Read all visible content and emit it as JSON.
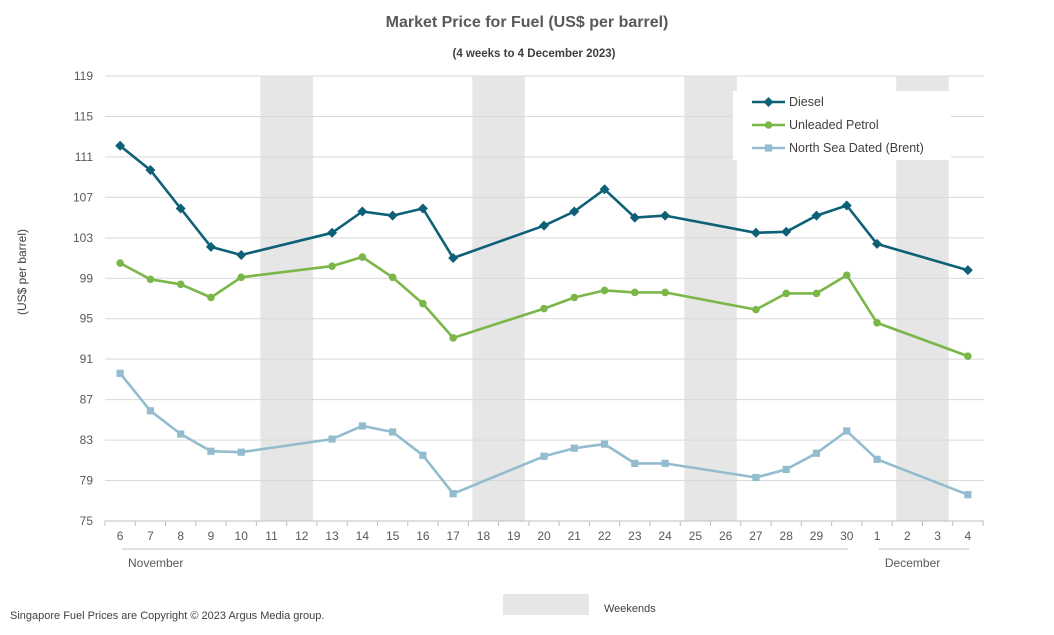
{
  "chart_data": {
    "type": "line",
    "title": "Market Price for Fuel (US$ per barrel)",
    "subtitle": "(4 weeks to 4 December 2023)",
    "xlabel": "",
    "ylabel": "(US$ per barrel)",
    "ylim": [
      75,
      119
    ],
    "yticks": [
      75,
      79,
      83,
      87,
      91,
      95,
      99,
      103,
      107,
      111,
      115,
      119
    ],
    "grid": true,
    "legend_position": "top-right",
    "categories": [
      "6",
      "7",
      "8",
      "9",
      "10",
      "11",
      "12",
      "13",
      "14",
      "15",
      "16",
      "17",
      "18",
      "19",
      "20",
      "21",
      "22",
      "23",
      "24",
      "25",
      "26",
      "27",
      "28",
      "29",
      "30",
      "1",
      "2",
      "3",
      "4"
    ],
    "month_groups": [
      {
        "label": "November",
        "start": 0,
        "end": 24
      },
      {
        "label": "December",
        "start": 25,
        "end": 28
      }
    ],
    "weekend_shading": {
      "label": "Weekends",
      "color": "#e6e6e6",
      "ranges": [
        [
          5,
          6
        ],
        [
          12,
          13
        ],
        [
          19,
          20
        ],
        [
          26,
          27
        ]
      ]
    },
    "series": [
      {
        "name": "Diesel",
        "color": "#0e6077",
        "marker": "diamond",
        "points": [
          [
            0,
            112.1
          ],
          [
            1,
            109.7
          ],
          [
            2,
            105.9
          ],
          [
            3,
            102.1
          ],
          [
            4,
            101.3
          ],
          [
            7,
            103.5
          ],
          [
            8,
            105.6
          ],
          [
            9,
            105.2
          ],
          [
            10,
            105.9
          ],
          [
            11,
            101.0
          ],
          [
            14,
            104.2
          ],
          [
            15,
            105.6
          ],
          [
            16,
            107.8
          ],
          [
            17,
            105.0
          ],
          [
            18,
            105.2
          ],
          [
            21,
            103.5
          ],
          [
            22,
            103.6
          ],
          [
            23,
            105.2
          ],
          [
            24,
            106.2
          ],
          [
            25,
            102.4
          ],
          [
            28,
            99.8
          ]
        ]
      },
      {
        "name": "Unleaded Petrol",
        "color": "#7ab648",
        "marker": "circle",
        "points": [
          [
            0,
            100.5
          ],
          [
            1,
            98.9
          ],
          [
            2,
            98.4
          ],
          [
            3,
            97.1
          ],
          [
            4,
            99.1
          ],
          [
            7,
            100.2
          ],
          [
            8,
            101.1
          ],
          [
            9,
            99.1
          ],
          [
            10,
            96.5
          ],
          [
            11,
            93.1
          ],
          [
            14,
            96.0
          ],
          [
            15,
            97.1
          ],
          [
            16,
            97.8
          ],
          [
            17,
            97.6
          ],
          [
            18,
            97.6
          ],
          [
            21,
            95.9
          ],
          [
            22,
            97.5
          ],
          [
            23,
            97.5
          ],
          [
            24,
            99.3
          ],
          [
            25,
            94.6
          ],
          [
            28,
            91.3
          ]
        ]
      },
      {
        "name": "North Sea Dated (Brent)",
        "color": "#93bccf",
        "marker": "square",
        "points": [
          [
            0,
            89.6
          ],
          [
            1,
            85.9
          ],
          [
            2,
            83.6
          ],
          [
            3,
            81.9
          ],
          [
            4,
            81.8
          ],
          [
            7,
            83.1
          ],
          [
            8,
            84.4
          ],
          [
            9,
            83.8
          ],
          [
            10,
            81.5
          ],
          [
            11,
            77.7
          ],
          [
            14,
            81.4
          ],
          [
            15,
            82.2
          ],
          [
            16,
            82.6
          ],
          [
            17,
            80.7
          ],
          [
            18,
            80.7
          ],
          [
            21,
            79.3
          ],
          [
            22,
            80.1
          ],
          [
            23,
            81.7
          ],
          [
            24,
            83.9
          ],
          [
            25,
            81.1
          ],
          [
            28,
            77.6
          ]
        ]
      }
    ],
    "copyright": "Singapore Fuel Prices are Copyright © 2023 Argus Media group."
  }
}
